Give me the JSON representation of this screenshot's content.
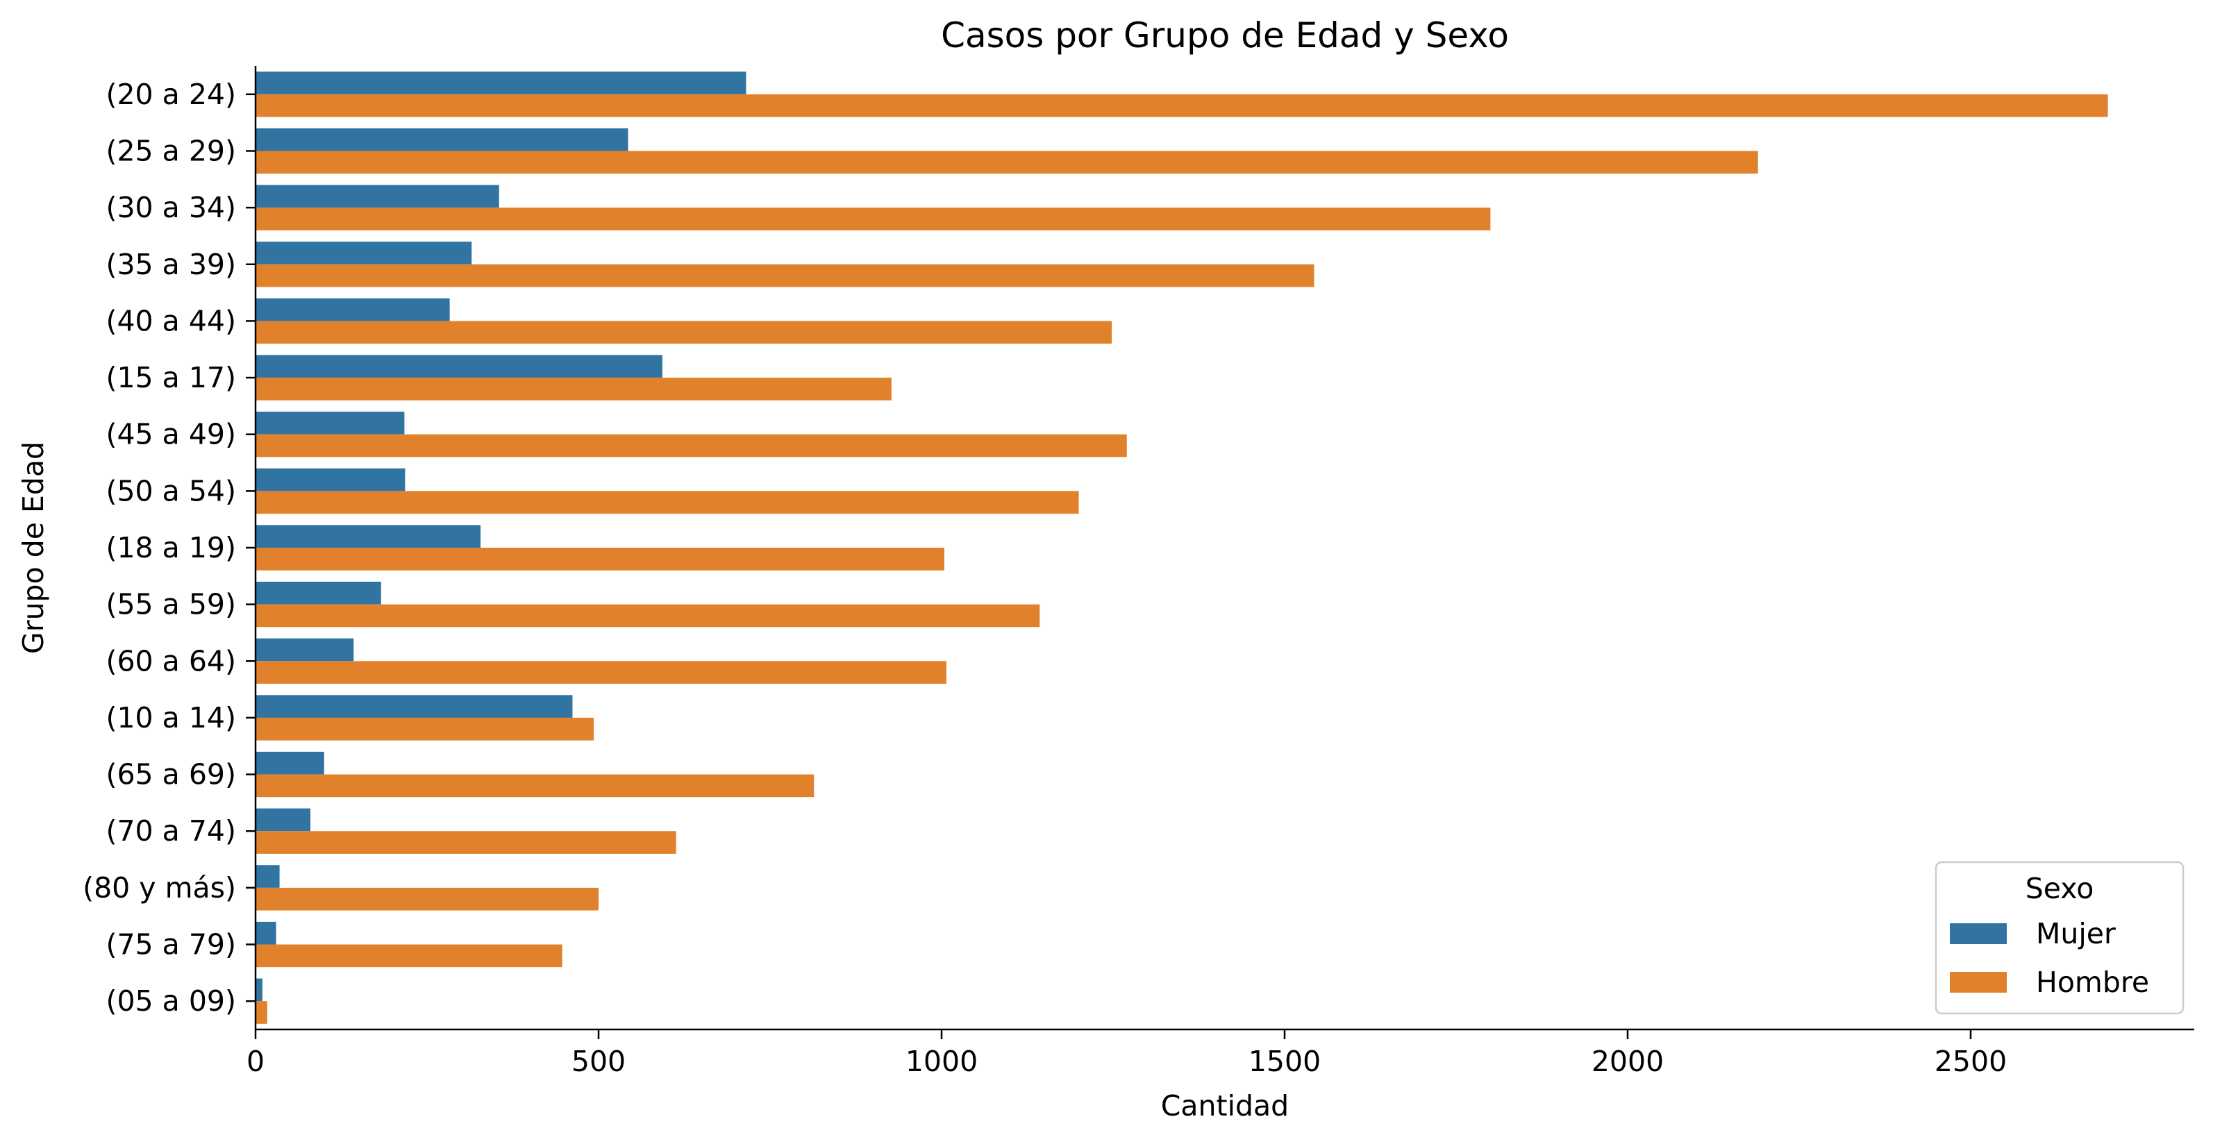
{
  "chart_data": {
    "type": "bar",
    "orientation": "horizontal",
    "title": "Casos por Grupo de Edad y Sexo",
    "xlabel": "Cantidad",
    "ylabel": "Grupo de Edad",
    "xlim": [
      0,
      2850
    ],
    "xticks": [
      0,
      500,
      1000,
      1500,
      2000,
      2500
    ],
    "grid": false,
    "categories": [
      "(20 a 24)",
      "(25 a 29)",
      "(30 a 34)",
      "(35 a 39)",
      "(40 a 44)",
      "(15 a 17)",
      "(45 a 49)",
      "(50 a 54)",
      "(18 a 19)",
      "(55 a 59)",
      "(60 a 64)",
      "(10 a 14)",
      "(65 a 69)",
      "(70 a 74)",
      "(80 y más)",
      "(75 a 79)",
      "(05 a 09)"
    ],
    "series": [
      {
        "name": "Mujer",
        "color": "#3274a1",
        "values": [
          715,
          543,
          355,
          315,
          283,
          593,
          217,
          218,
          328,
          183,
          143,
          462,
          100,
          80,
          35,
          30,
          10
        ]
      },
      {
        "name": "Hombre",
        "color": "#e1812c",
        "values": [
          2700,
          2190,
          1800,
          1543,
          1248,
          927,
          1270,
          1200,
          1004,
          1143,
          1007,
          493,
          814,
          613,
          500,
          447,
          17
        ]
      }
    ],
    "legend": {
      "title": "Sexo",
      "placement": "bottom-right"
    }
  }
}
